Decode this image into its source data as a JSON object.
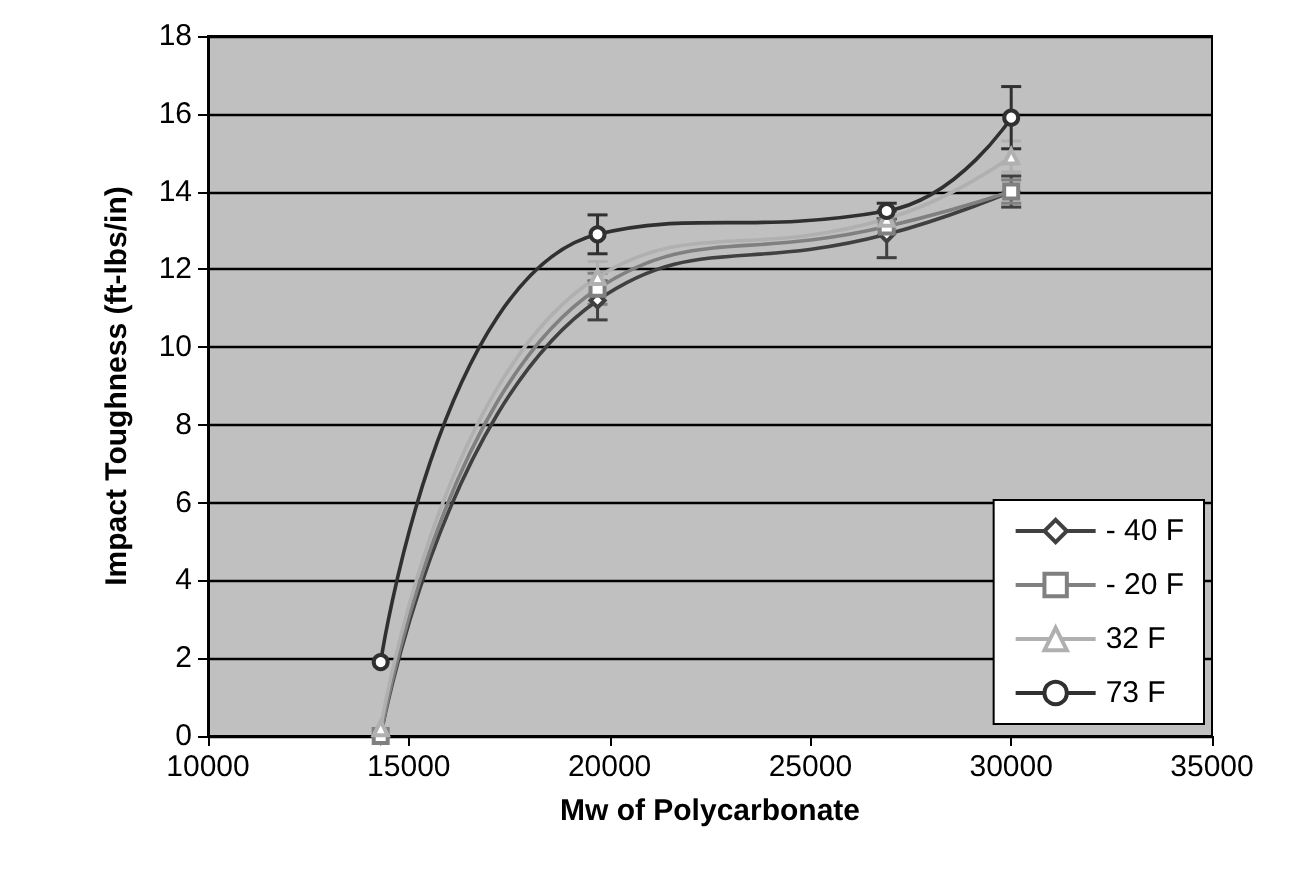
{
  "chart_data": {
    "type": "line",
    "xlabel": "Mw of Polycarbonate",
    "ylabel": "Impact Toughness (ft-lbs/in)",
    "xlim": [
      10000,
      35000
    ],
    "xticks": [
      10000,
      15000,
      20000,
      25000,
      30000,
      35000
    ],
    "ylim": [
      0,
      18
    ],
    "yticks": [
      0,
      2,
      4,
      6,
      8,
      10,
      12,
      14,
      16,
      18
    ],
    "grid": "y",
    "legend": "bottom right",
    "series": [
      {
        "name": "- 40 F",
        "color": "#404040",
        "marker": "diamond",
        "x": [
          14300,
          19700,
          26900,
          30000
        ],
        "values": [
          0,
          11.2,
          12.9,
          14.0
        ],
        "errors": [
          null,
          0.5,
          0.6,
          0.4
        ]
      },
      {
        "name": "- 20 F",
        "color": "#808080",
        "marker": "square",
        "x": [
          14300,
          19700,
          26900,
          30000
        ],
        "values": [
          0,
          11.5,
          13.1,
          14.0
        ],
        "errors": [
          null,
          0.4,
          null,
          0.3
        ]
      },
      {
        "name": "32 F",
        "color": "#b0b0b0",
        "marker": "triangle",
        "x": [
          14300,
          19700,
          26900,
          30000
        ],
        "values": [
          0.2,
          11.8,
          13.3,
          14.9
        ],
        "errors": [
          null,
          0.4,
          null,
          0.4
        ]
      },
      {
        "name": "73 F",
        "color": "#303030",
        "marker": "circle",
        "x": [
          14300,
          19700,
          26900,
          30000
        ],
        "values": [
          1.9,
          12.9,
          13.5,
          15.9
        ],
        "errors": [
          null,
          0.5,
          0.2,
          0.8
        ]
      }
    ]
  }
}
